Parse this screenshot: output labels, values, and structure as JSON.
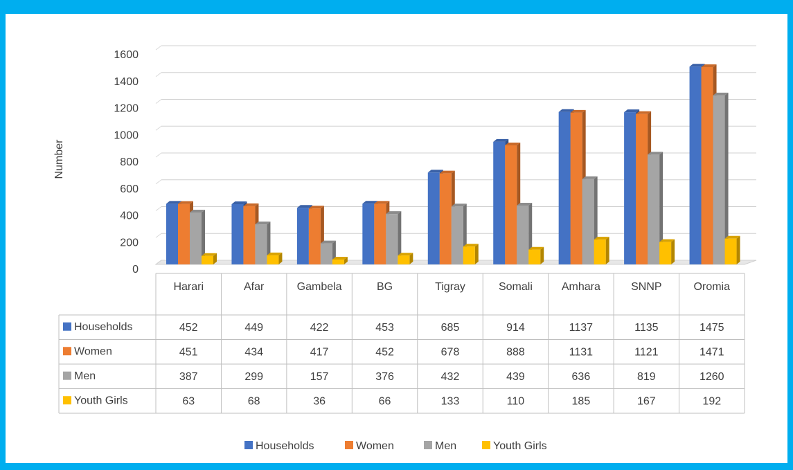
{
  "chart_data": {
    "type": "bar3d",
    "y_axis_label": "Number",
    "categories": [
      "Harari",
      "Afar",
      "Gambela",
      "BG",
      "Tigray",
      "Somali",
      "Amhara",
      "SNNP",
      "Oromia"
    ],
    "series": [
      {
        "name": "Households",
        "color": "#4472c4",
        "values": [
          452,
          449,
          422,
          453,
          685,
          914,
          1137,
          1135,
          1475
        ]
      },
      {
        "name": "Women",
        "color": "#ed7d31",
        "values": [
          451,
          434,
          417,
          452,
          678,
          888,
          1131,
          1121,
          1471
        ]
      },
      {
        "name": "Men",
        "color": "#a5a5a5",
        "values": [
          387,
          299,
          157,
          376,
          432,
          439,
          636,
          819,
          1260
        ]
      },
      {
        "name": "Youth Girls",
        "color": "#ffc000",
        "values": [
          63,
          68,
          36,
          66,
          133,
          110,
          185,
          167,
          192
        ]
      }
    ],
    "ylim": [
      0,
      1600
    ],
    "yticks": [
      0,
      200,
      400,
      600,
      800,
      1000,
      1200,
      1400,
      1600
    ],
    "grid": true
  }
}
